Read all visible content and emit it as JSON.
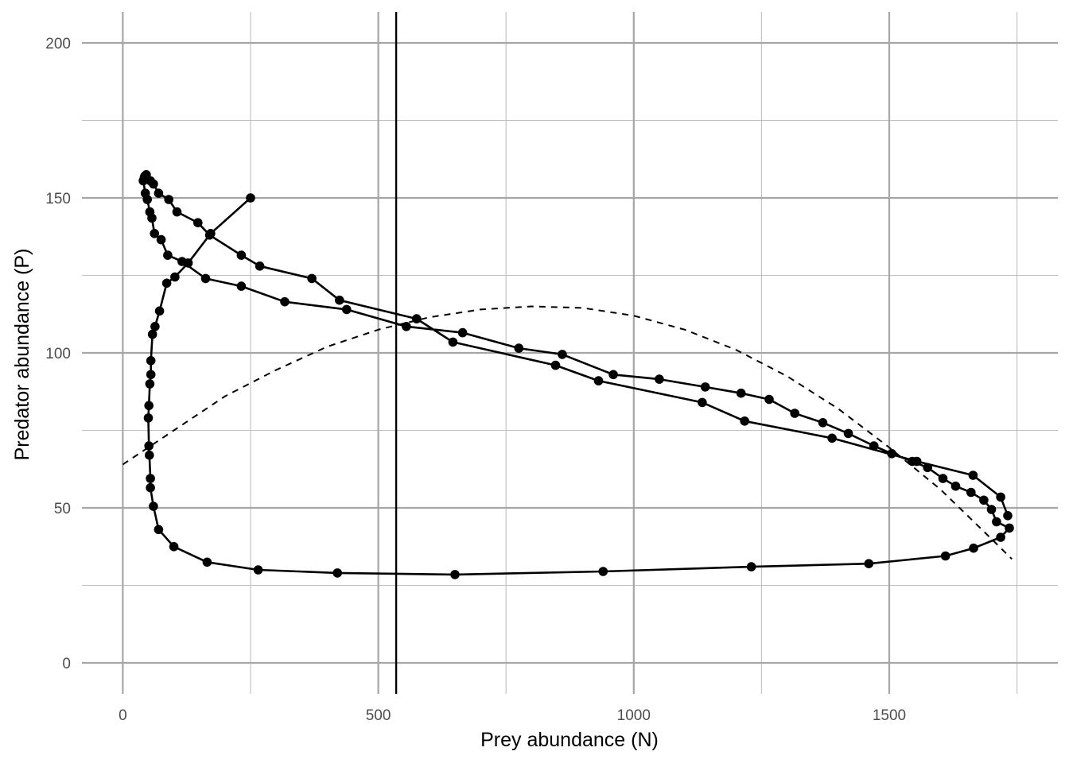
{
  "chart_data": {
    "type": "line",
    "xlabel": "Prey abundance (N)",
    "ylabel": "Predator abundance (P)",
    "xlim": [
      -80,
      1830
    ],
    "ylim": [
      -10,
      210
    ],
    "xticks": [
      0,
      500,
      1000,
      1500
    ],
    "xtick_labels": [
      "0",
      "500",
      "1000",
      "1500"
    ],
    "yticks": [
      0,
      50,
      100,
      150,
      200
    ],
    "ytick_labels": [
      "0",
      "50",
      "100",
      "150",
      "200"
    ],
    "x_minor_gridlines": [
      250,
      750,
      1250,
      1750
    ],
    "y_minor_gridlines": [
      25,
      75,
      125,
      175
    ],
    "grid": true,
    "background": "#ffffff",
    "colors": {
      "grid_major": "#a6a6a6",
      "grid_minor": "#bfbfbf",
      "series": "#000000",
      "tick_text": "#4d4d4d"
    },
    "series": [
      {
        "type": "line+points",
        "style": "solid",
        "x": [
          250,
          172,
          128,
          102,
          86,
          72,
          63,
          58,
          55,
          55,
          53,
          51,
          50,
          51,
          52,
          54,
          54,
          60,
          70,
          100,
          165,
          265,
          420,
          650,
          940,
          1230,
          1460,
          1610,
          1665,
          1718,
          1735,
          1710,
          1700,
          1685,
          1660,
          1630,
          1605,
          1575,
          1545,
          1505,
          1470,
          1420,
          1370,
          1315,
          1265,
          1210,
          1140,
          1050,
          960,
          860,
          775,
          665,
          555,
          438,
          317,
          232,
          162,
          116,
          88,
          75,
          62,
          57,
          53,
          48,
          44,
          40,
          42,
          43,
          46,
          54,
          60,
          70,
          90,
          106,
          147,
          170,
          232,
          268,
          370,
          424,
          575,
          646,
          847,
          931,
          1134,
          1217,
          1388,
          1554,
          1664,
          1718,
          1732
        ],
        "y": [
          150,
          138.5,
          129,
          124.5,
          122.5,
          113.5,
          108.5,
          106,
          97.5,
          93,
          90,
          83,
          79,
          70,
          67,
          59.5,
          56.5,
          50.5,
          43,
          37.5,
          32.5,
          30,
          29,
          28.5,
          29.5,
          31,
          32,
          34.5,
          37,
          40.5,
          43.5,
          45.5,
          49.5,
          52.5,
          55,
          57,
          59.5,
          63,
          65,
          67.5,
          70,
          74,
          77.5,
          80.5,
          85,
          87,
          89,
          91.5,
          93,
          99.5,
          101.5,
          106.5,
          108.5,
          114,
          116.5,
          121.5,
          124,
          129.5,
          131.5,
          136.5,
          138.5,
          143.5,
          145.5,
          149.5,
          151.5,
          155.5,
          156.5,
          157,
          157.5,
          155.5,
          154.5,
          151.5,
          149.5,
          145.5,
          142,
          138,
          131.5,
          128,
          124,
          117,
          111,
          103.5,
          96,
          91,
          84,
          78,
          72.5,
          65,
          60.5,
          53.5,
          47.5
        ],
        "points_x": [
          250,
          172,
          128,
          102,
          86,
          72,
          63,
          58,
          55,
          55,
          53,
          51,
          50,
          51,
          52,
          54,
          54,
          60,
          70,
          100,
          165,
          265,
          420,
          650,
          940,
          1230,
          1460,
          1610,
          1665,
          1718,
          1735,
          1710,
          1700,
          1685,
          1660,
          1630,
          1605,
          1575,
          1545,
          1505,
          1470,
          1420,
          1370,
          1315,
          1265,
          1210,
          1140,
          1050,
          960,
          860,
          775,
          665,
          555,
          438,
          317,
          232,
          162,
          116,
          88,
          75,
          62,
          57,
          53,
          48,
          44,
          40,
          42,
          43,
          46,
          54,
          60,
          70,
          90,
          106,
          147,
          170,
          232,
          268,
          370,
          424,
          575,
          646,
          847,
          931,
          1134,
          1217,
          1388,
          1554,
          1664,
          1718,
          1732
        ],
        "points_y": [
          150,
          138.5,
          129,
          124.5,
          122.5,
          113.5,
          108.5,
          106,
          97.5,
          93,
          90,
          83,
          79,
          70,
          67,
          59.5,
          56.5,
          50.5,
          43,
          37.5,
          32.5,
          30,
          29,
          28.5,
          29.5,
          31,
          32,
          34.5,
          37,
          40.5,
          43.5,
          45.5,
          49.5,
          52.5,
          55,
          57,
          59.5,
          63,
          65,
          67.5,
          70,
          74,
          77.5,
          80.5,
          85,
          87,
          89,
          91.5,
          93,
          99.5,
          101.5,
          106.5,
          108.5,
          114,
          116.5,
          121.5,
          124,
          129.5,
          131.5,
          136.5,
          138.5,
          143.5,
          145.5,
          149.5,
          151.5,
          155.5,
          156.5,
          157,
          157.5,
          155.5,
          154.5,
          151.5,
          149.5,
          145.5,
          142,
          138,
          131.5,
          128,
          124,
          117,
          111,
          103.5,
          96,
          91,
          84,
          78,
          72.5,
          65,
          60.5,
          53.5,
          47.5
        ]
      },
      {
        "type": "line",
        "style": "dashed",
        "x": [
          0,
          100,
          200,
          300,
          400,
          500,
          600,
          700,
          800,
          900,
          1000,
          1100,
          1200,
          1300,
          1400,
          1500,
          1600,
          1700,
          1740
        ],
        "y": [
          64,
          75,
          86,
          94.5,
          102,
          107.5,
          111.5,
          114,
          115,
          114.5,
          112,
          107.5,
          101,
          92.5,
          82,
          69.5,
          56,
          40,
          33.5
        ]
      },
      {
        "type": "vline",
        "style": "solid",
        "x": 535
      }
    ]
  }
}
